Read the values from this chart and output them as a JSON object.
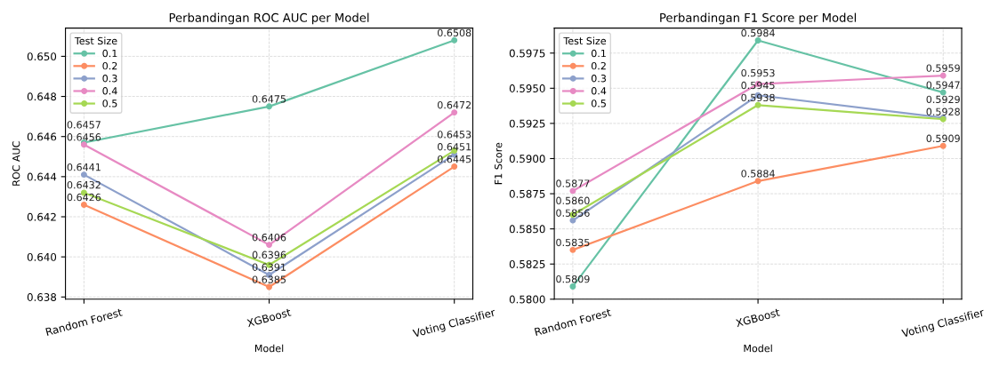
{
  "chart_data": [
    {
      "type": "line",
      "title": "Perbandingan ROC AUC per Model",
      "xlabel": "Model",
      "ylabel": "ROC AUC",
      "legend_title": "Test Size",
      "legend": "top left",
      "grid": true,
      "marker": "circle",
      "line_style": "solid",
      "categories": [
        "Random Forest",
        "XGBoost",
        "Voting Classifier"
      ],
      "ylim": [
        0.63789,
        0.65141
      ],
      "yticks": [
        {
          "value": 0.638,
          "label": "0.638"
        },
        {
          "value": 0.64,
          "label": "0.640"
        },
        {
          "value": 0.642,
          "label": "0.642"
        },
        {
          "value": 0.644,
          "label": "0.644"
        },
        {
          "value": 0.646,
          "label": "0.646"
        },
        {
          "value": 0.648,
          "label": "0.648"
        },
        {
          "value": 0.65,
          "label": "0.650"
        }
      ],
      "series": [
        {
          "name": "0.1",
          "color": "#66c2a5",
          "values": [
            0.6457,
            0.6475,
            0.6508
          ],
          "value_labels": [
            "0.6457",
            "0.6475",
            "0.6508"
          ]
        },
        {
          "name": "0.2",
          "color": "#fc8d62",
          "values": [
            0.6426,
            0.6385,
            0.6445
          ],
          "value_labels": [
            "0.6426",
            "0.6385",
            "0.6445"
          ]
        },
        {
          "name": "0.3",
          "color": "#8da0cb",
          "values": [
            0.6441,
            0.6391,
            0.6451
          ],
          "value_labels": [
            "0.6441",
            "0.6391",
            "0.6451"
          ]
        },
        {
          "name": "0.4",
          "color": "#e78ac3",
          "values": [
            0.6456,
            0.6406,
            0.6472
          ],
          "value_labels": [
            "0.6456",
            "0.6406",
            "0.6472"
          ]
        },
        {
          "name": "0.5",
          "color": "#a6d854",
          "values": [
            0.6432,
            0.6396,
            0.6453
          ],
          "value_labels": [
            "0.6432",
            "0.6396",
            "0.6453"
          ]
        }
      ]
    },
    {
      "type": "line",
      "title": "Perbandingan F1 Score per Model",
      "xlabel": "Model",
      "ylabel": "F1 Score",
      "legend_title": "Test Size",
      "legend": "top left",
      "grid": true,
      "marker": "circle",
      "line_style": "solid",
      "categories": [
        "Random Forest",
        "XGBoost",
        "Voting Classifier"
      ],
      "ylim": [
        0.58,
        0.59928
      ],
      "yticks": [
        {
          "value": 0.58,
          "label": "0.5800"
        },
        {
          "value": 0.5825,
          "label": "0.5825"
        },
        {
          "value": 0.585,
          "label": "0.5850"
        },
        {
          "value": 0.5875,
          "label": "0.5875"
        },
        {
          "value": 0.59,
          "label": "0.5900"
        },
        {
          "value": 0.5925,
          "label": "0.5925"
        },
        {
          "value": 0.595,
          "label": "0.5950"
        },
        {
          "value": 0.5975,
          "label": "0.5975"
        }
      ],
      "series": [
        {
          "name": "0.1",
          "color": "#66c2a5",
          "values": [
            0.5809,
            0.5984,
            0.5947
          ],
          "value_labels": [
            "0.5809",
            "0.5984",
            "0.5947"
          ]
        },
        {
          "name": "0.2",
          "color": "#fc8d62",
          "values": [
            0.5835,
            0.5884,
            0.5909
          ],
          "value_labels": [
            "0.5835",
            "0.5884",
            "0.5909"
          ]
        },
        {
          "name": "0.3",
          "color": "#8da0cb",
          "values": [
            0.5856,
            0.5945,
            0.5929
          ],
          "value_labels": [
            "0.5856",
            "0.5945",
            "0.5929"
          ]
        },
        {
          "name": "0.4",
          "color": "#e78ac3",
          "values": [
            0.5877,
            0.5953,
            0.5959
          ],
          "value_labels": [
            "0.5877",
            "0.5953",
            "0.5959"
          ]
        },
        {
          "name": "0.5",
          "color": "#a6d854",
          "values": [
            0.586,
            0.5938,
            0.5928
          ],
          "value_labels": [
            "0.5860",
            "0.5938",
            "0.5928"
          ]
        }
      ]
    }
  ]
}
